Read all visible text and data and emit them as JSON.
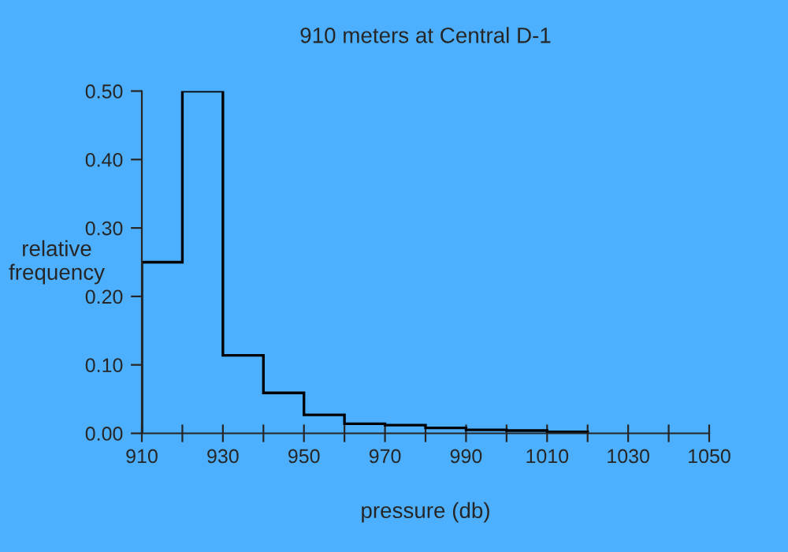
{
  "chart_data": {
    "type": "histogram",
    "title": "910 meters at Central D-1",
    "xlabel": "pressure (db)",
    "ylabel": "relative\nfrequency",
    "bins": [
      910,
      920,
      930,
      940,
      950,
      960,
      970,
      980,
      990,
      1000,
      1010,
      1020
    ],
    "values": [
      0.25,
      0.5,
      0.114,
      0.059,
      0.027,
      0.014,
      0.012,
      0.008,
      0.005,
      0.004,
      0.002
    ],
    "color": "#000000",
    "xlim": [
      910,
      1050
    ],
    "xticks": [
      910,
      {
        "value": 920,
        "label": null
      },
      930,
      {
        "value": 940,
        "label": null
      },
      950,
      {
        "value": 960,
        "label": null
      },
      970,
      {
        "value": 980,
        "label": null
      },
      990,
      {
        "value": 1000,
        "label": null
      },
      1010,
      {
        "value": 1020,
        "label": null
      },
      1030,
      {
        "value": 1040,
        "label": null
      },
      1050
    ],
    "ylim": [
      0,
      0.5
    ],
    "yticks": [
      {
        "value": 0,
        "label": "0.00"
      },
      {
        "value": 0.1,
        "label": "0.10"
      },
      {
        "value": 0.2,
        "label": "0.20"
      },
      {
        "value": 0.3,
        "label": "0.30"
      },
      {
        "value": 0.4,
        "label": "0.40"
      },
      {
        "value": 0.5,
        "label": "0.50"
      }
    ],
    "grid": false,
    "legend": false
  }
}
